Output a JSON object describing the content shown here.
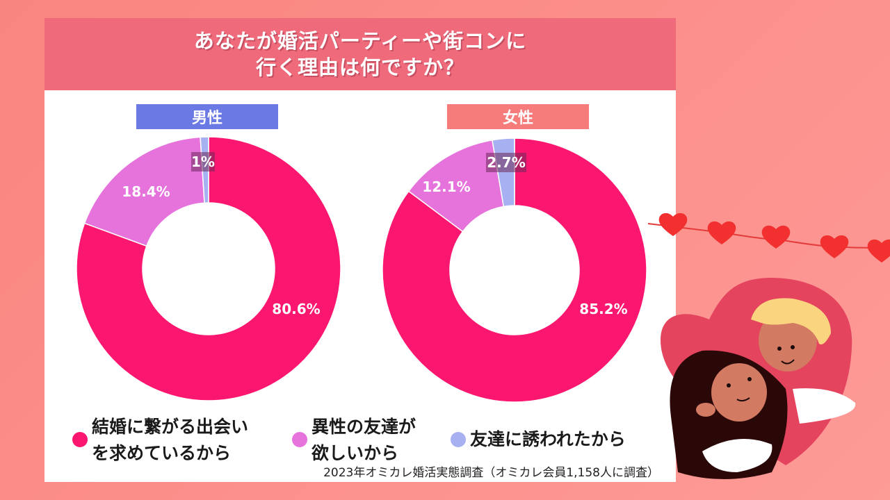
{
  "title": {
    "line1": "あなたが婚活パーティーや街コンに",
    "line2": "行く理由は何ですか？"
  },
  "groups": {
    "male": {
      "label": "男性",
      "color": "#6b79e4"
    },
    "female": {
      "label": "女性",
      "color": "#f57c7a"
    }
  },
  "legend": [
    {
      "label_line1": "結婚に繋がる出会い",
      "label_line2": "を求めているから",
      "color": "#fb1770"
    },
    {
      "label_line1": "異性の友達が",
      "label_line2": "欲しいから",
      "color": "#e673dc"
    },
    {
      "label_line1": "友達に誘われたから",
      "label_line2": "",
      "color": "#a7b1f2"
    }
  ],
  "source": "2023年オミカレ婚活実態調査（オミカレ会員1,158人に調査）",
  "chart_data": [
    {
      "type": "pie",
      "subtype": "donut",
      "title": "あなたが婚活パーティーや街コンに行く理由は何ですか？",
      "group": "男性",
      "categories": [
        "結婚に繋がる出会いを求めているから",
        "異性の友達が欲しいから",
        "友達に誘われたから"
      ],
      "values": [
        80.6,
        18.4,
        1.0
      ],
      "labels": [
        "80.6%",
        "18.4%",
        "1%"
      ],
      "colors": [
        "#fb1770",
        "#e673dc",
        "#a7b1f2"
      ],
      "legend_position": "bottom"
    },
    {
      "type": "pie",
      "subtype": "donut",
      "title": "あなたが婚活パーティーや街コンに行く理由は何ですか？",
      "group": "女性",
      "categories": [
        "結婚に繋がる出会いを求めているから",
        "異性の友達が欲しいから",
        "友達に誘われたから"
      ],
      "values": [
        85.2,
        12.1,
        2.7
      ],
      "labels": [
        "85.2%",
        "12.1%",
        "2.7%"
      ],
      "colors": [
        "#fb1770",
        "#e673dc",
        "#a7b1f2"
      ],
      "legend_position": "bottom"
    }
  ]
}
